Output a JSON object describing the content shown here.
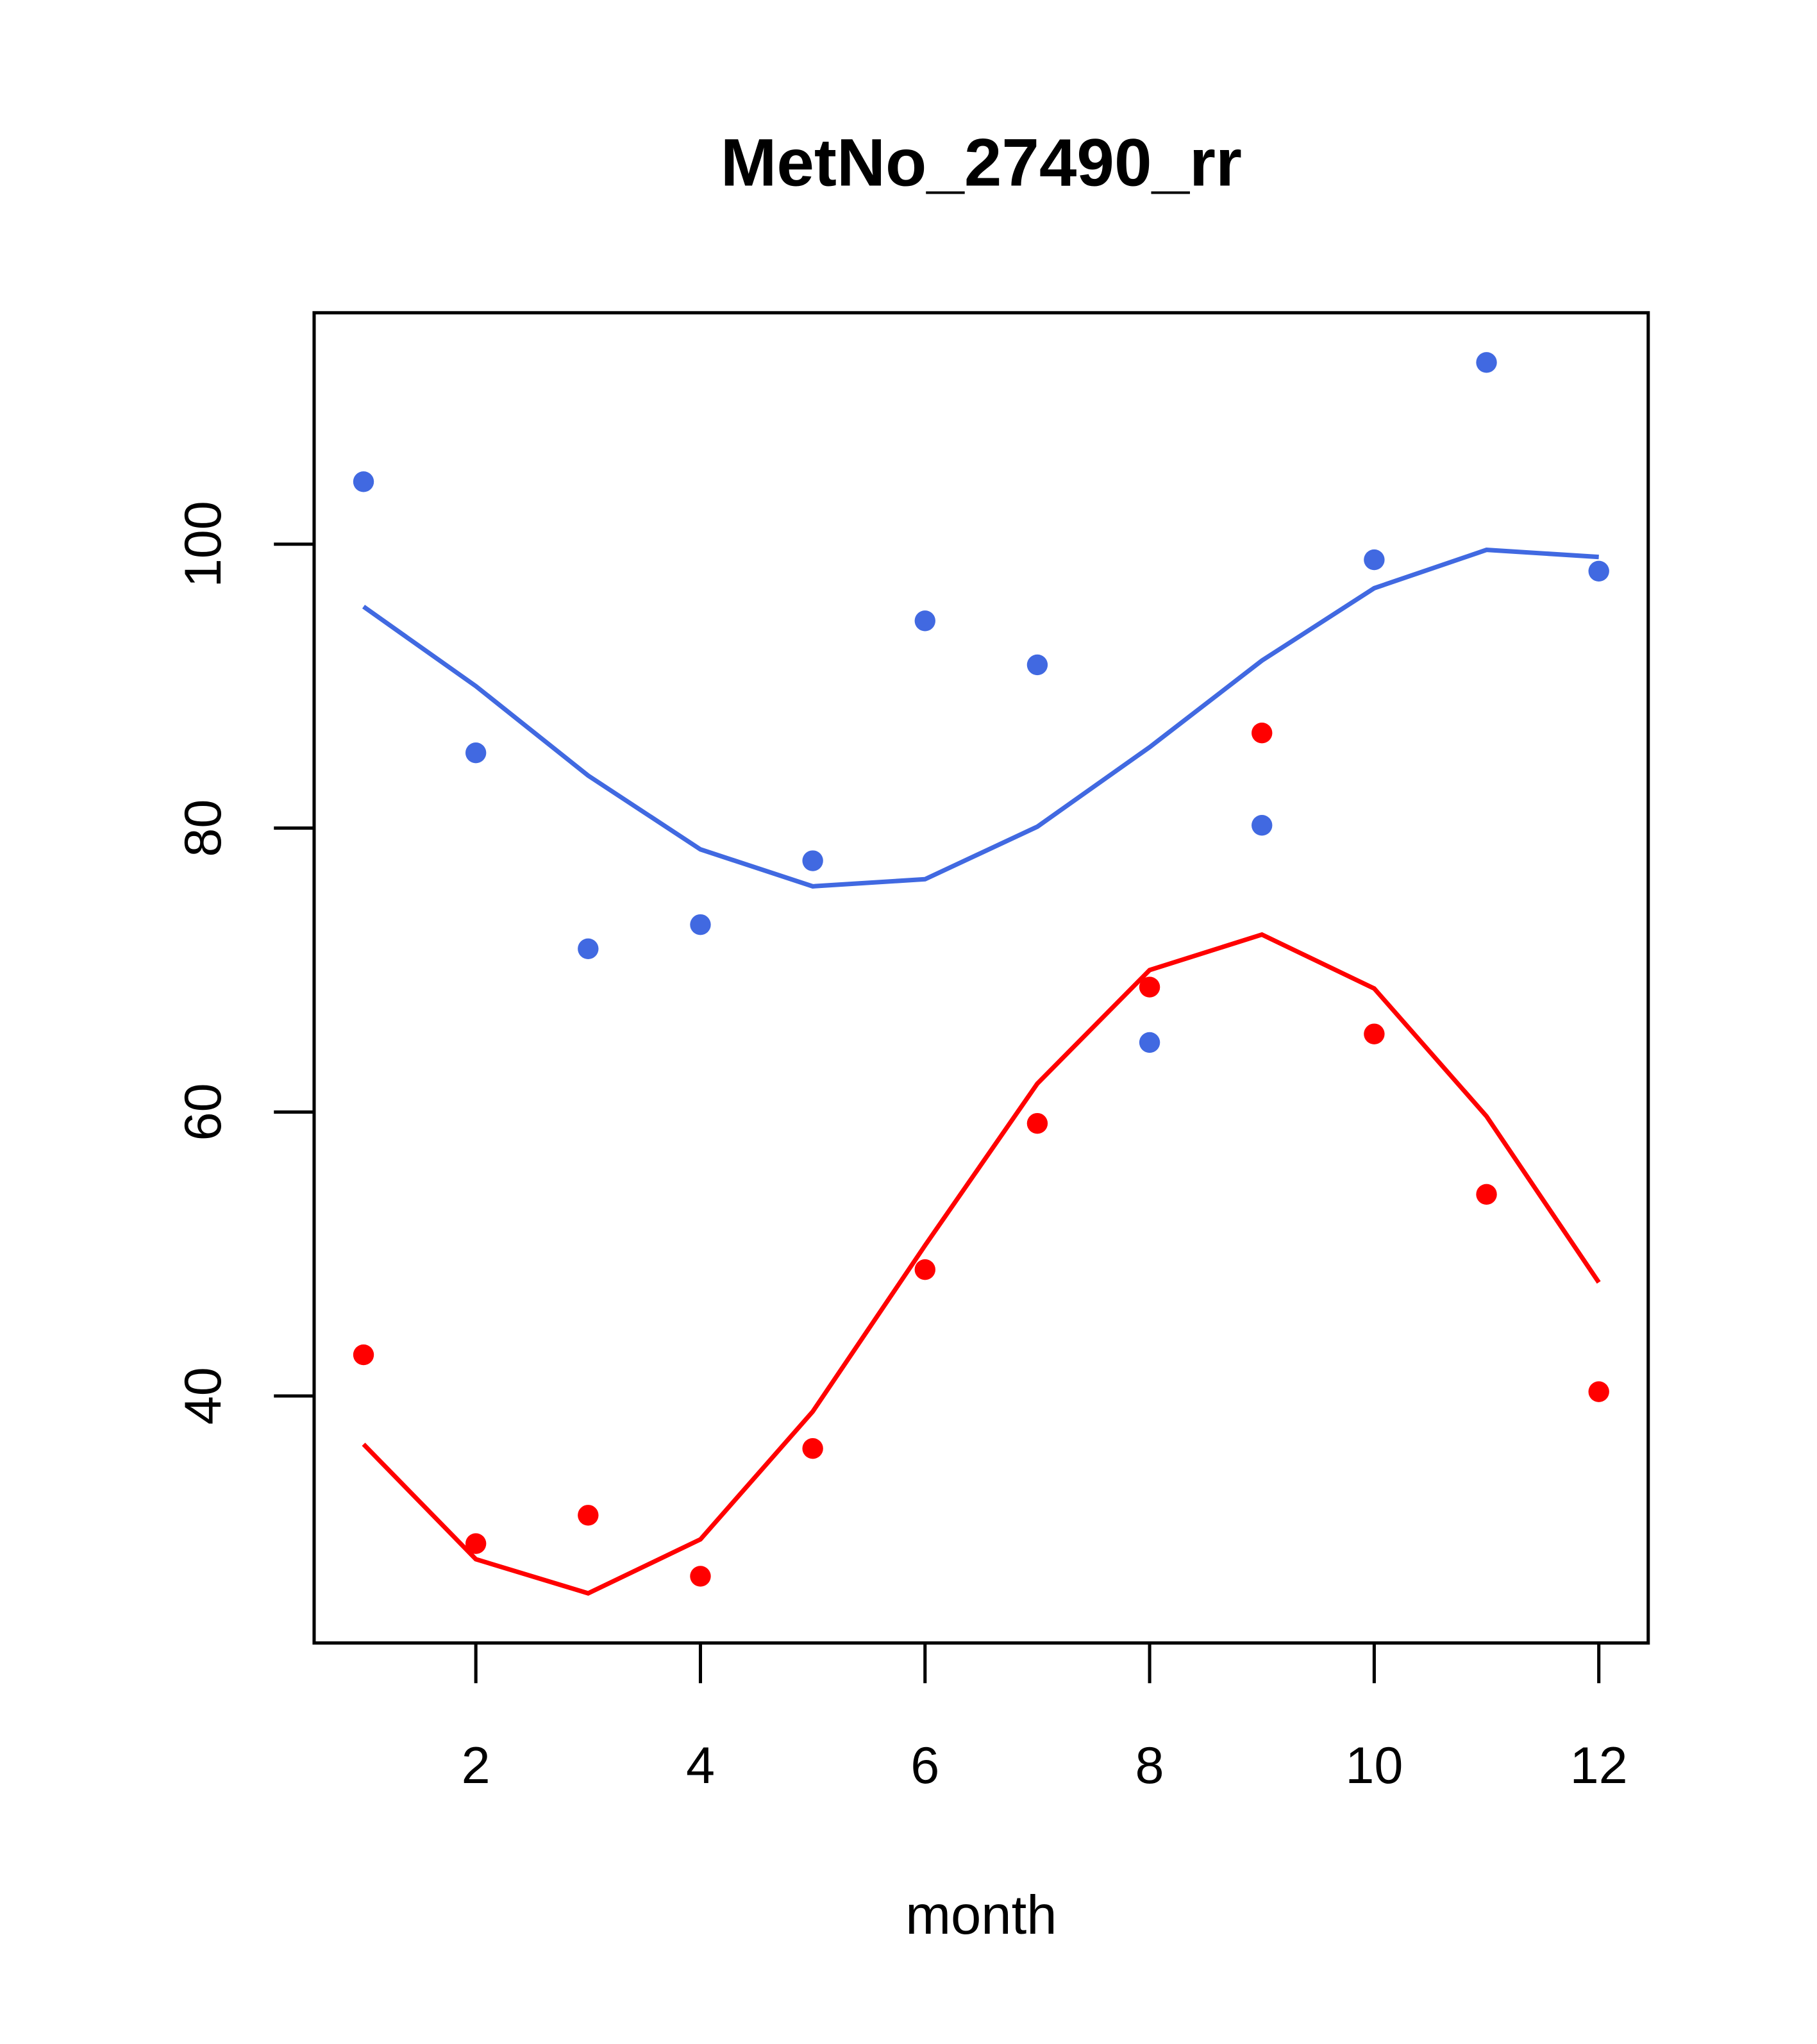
{
  "chart_data": {
    "type": "line",
    "title": "MetNo_27490_rr",
    "xlabel": "month",
    "ylabel": "",
    "xlim": [
      0.56,
      12.44
    ],
    "ylim": [
      22.6,
      116.3
    ],
    "xticks": [
      2,
      4,
      6,
      8,
      10,
      12
    ],
    "xtick_labels": [
      "2",
      "4",
      "6",
      "8",
      "10",
      "12"
    ],
    "yticks": [
      40,
      60,
      80,
      100
    ],
    "ytick_labels": [
      "40",
      "60",
      "80",
      "100"
    ],
    "grid": false,
    "x": [
      1,
      2,
      3,
      4,
      5,
      6,
      7,
      8,
      9,
      10,
      11,
      12
    ],
    "series": [
      {
        "name": "blue points",
        "kind": "scatter",
        "color": "#4169E1",
        "values": [
          104.4,
          85.3,
          71.5,
          73.2,
          77.7,
          94.6,
          91.5,
          64.9,
          80.2,
          98.9,
          112.8,
          98.1
        ]
      },
      {
        "name": "blue line",
        "kind": "line",
        "color": "#4169E1",
        "values": [
          95.6,
          90.0,
          83.7,
          78.5,
          75.9,
          76.4,
          80.1,
          85.7,
          91.8,
          96.9,
          99.6,
          99.1
        ]
      },
      {
        "name": "red points",
        "kind": "scatter",
        "color": "#FF0000",
        "values": [
          42.9,
          29.6,
          31.6,
          27.3,
          36.3,
          48.9,
          59.2,
          68.8,
          86.7,
          65.5,
          54.2,
          40.3
        ]
      },
      {
        "name": "red line",
        "kind": "line",
        "color": "#FF0000",
        "values": [
          36.6,
          28.5,
          26.1,
          29.9,
          38.9,
          50.6,
          62.0,
          70.0,
          72.5,
          68.7,
          59.7,
          48.0
        ]
      }
    ]
  }
}
